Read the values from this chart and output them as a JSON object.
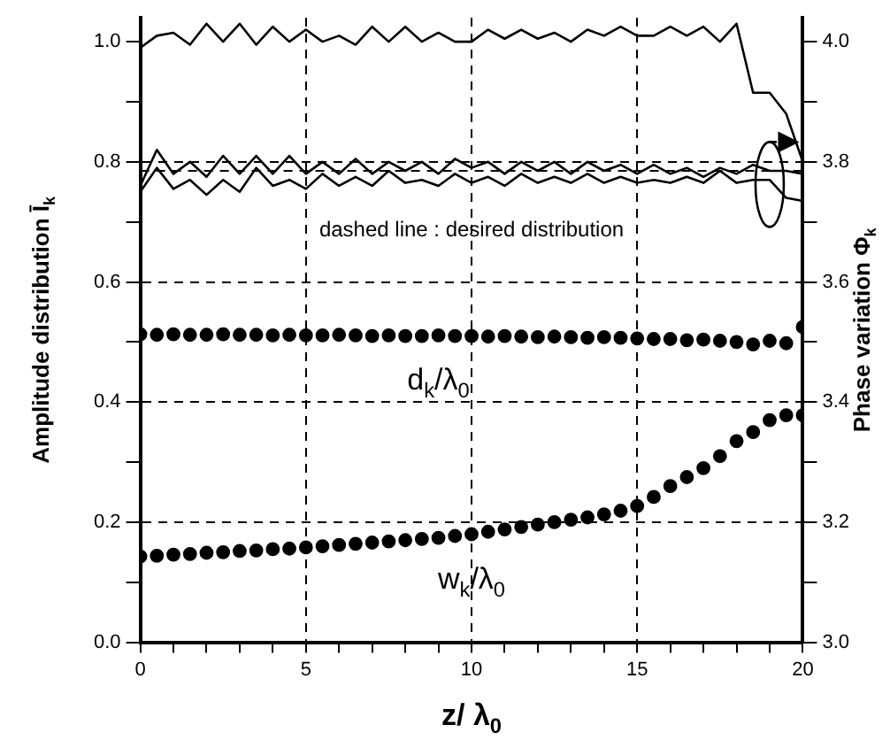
{
  "chart_data": {
    "type": "line",
    "xlabel": "z/ λ$_{0}$",
    "ylabel": "Amplitude distribution Ī$_{k}$",
    "y2label": "Phase variation Φ$_{k}$",
    "annotations": [
      "dashed line : desired distribution"
    ],
    "x": [
      0,
      0.5,
      1,
      1.5,
      2,
      2.5,
      3,
      3.5,
      4,
      4.5,
      5,
      5.5,
      6,
      6.5,
      7,
      7.5,
      8,
      8.5,
      9,
      9.5,
      10,
      10.5,
      11,
      11.5,
      12,
      12.5,
      13,
      13.5,
      14,
      14.5,
      15,
      15.5,
      16,
      16.5,
      17,
      17.5,
      18,
      18.5,
      19,
      19.5,
      20
    ],
    "xlim": [
      0,
      20
    ],
    "xticks": [
      0,
      {
        "value": 1,
        "label": null
      },
      {
        "value": 2,
        "label": null
      },
      {
        "value": 3,
        "label": null
      },
      {
        "value": 4,
        "label": null
      },
      5,
      {
        "value": 6,
        "label": null
      },
      {
        "value": 7,
        "label": null
      },
      {
        "value": 8,
        "label": null
      },
      {
        "value": 9,
        "label": null
      },
      10,
      {
        "value": 11,
        "label": null
      },
      {
        "value": 12,
        "label": null
      },
      {
        "value": 13,
        "label": null
      },
      {
        "value": 14,
        "label": null
      },
      15,
      {
        "value": 16,
        "label": null
      },
      {
        "value": 17,
        "label": null
      },
      {
        "value": 18,
        "label": null
      },
      {
        "value": 19,
        "label": null
      },
      20
    ],
    "ylim": [
      0,
      1.04
    ],
    "yticks": [
      {
        "value": 0,
        "label": "0.0"
      },
      {
        "value": 0.1,
        "label": null
      },
      {
        "value": 0.2,
        "label": "0.2"
      },
      {
        "value": 0.3,
        "label": null
      },
      {
        "value": 0.4,
        "label": "0.4"
      },
      {
        "value": 0.5,
        "label": null
      },
      {
        "value": 0.6,
        "label": "0.6"
      },
      {
        "value": 0.7,
        "label": null
      },
      {
        "value": 0.8,
        "label": "0.8"
      },
      {
        "value": 0.9,
        "label": null
      },
      {
        "value": 1,
        "label": "1.0"
      }
    ],
    "y2lim": [
      3,
      4.04
    ],
    "y2ticks": [
      {
        "value": 3,
        "label": "3.0"
      },
      {
        "value": 3.1,
        "label": null
      },
      3.2,
      {
        "value": 3.3,
        "label": null
      },
      3.4,
      {
        "value": 3.5,
        "label": null
      },
      3.6,
      {
        "value": 3.7,
        "label": null
      },
      3.8,
      {
        "value": 3.9,
        "label": null
      },
      {
        "value": 4,
        "label": "4.0"
      }
    ],
    "grid": true,
    "legend": false,
    "ref_lines": [
      {
        "axis": "y",
        "value": 0.785,
        "line_style": "dashed",
        "color": "#000000"
      }
    ],
    "series": [
      {
        "type": "line",
        "color": "#000000",
        "marker": "none",
        "line_style": "solid",
        "values": [
          0.99,
          1.01,
          1.015,
          0.995,
          1.03,
          1.0,
          1.03,
          0.995,
          1.025,
          1.0,
          1.02,
          1.0,
          1.01,
          0.995,
          1.025,
          1.0,
          1.025,
          1.0,
          1.015,
          1.0,
          1.0,
          1.02,
          1.005,
          1.02,
          1.005,
          1.015,
          1.0,
          1.02,
          1.01,
          1.025,
          1.01,
          1.01,
          1.025,
          1.01,
          1.025,
          1.0,
          1.03,
          0.915,
          0.915,
          0.88,
          0.8
        ]
      },
      {
        "type": "line",
        "axis": "y2",
        "color": "#000000",
        "marker": "none",
        "line_style": "solid",
        "values": [
          3.76,
          3.82,
          3.78,
          3.8,
          3.775,
          3.81,
          3.78,
          3.81,
          3.78,
          3.81,
          3.78,
          3.8,
          3.78,
          3.805,
          3.78,
          3.8,
          3.785,
          3.8,
          3.78,
          3.805,
          3.79,
          3.8,
          3.78,
          3.8,
          3.785,
          3.8,
          3.78,
          3.8,
          3.785,
          3.795,
          3.78,
          3.795,
          3.78,
          3.79,
          3.775,
          3.79,
          3.78,
          3.795,
          3.785,
          3.785,
          3.78
        ]
      },
      {
        "type": "line",
        "axis": "y2",
        "color": "#000000",
        "marker": "none",
        "line_style": "solid",
        "values": [
          3.75,
          3.79,
          3.755,
          3.77,
          3.745,
          3.77,
          3.75,
          3.79,
          3.76,
          3.77,
          3.755,
          3.78,
          3.76,
          3.775,
          3.76,
          3.785,
          3.765,
          3.77,
          3.76,
          3.78,
          3.765,
          3.775,
          3.76,
          3.78,
          3.765,
          3.775,
          3.765,
          3.78,
          3.765,
          3.775,
          3.765,
          3.77,
          3.765,
          3.775,
          3.765,
          3.785,
          3.765,
          3.77,
          3.77,
          3.74,
          3.735
        ]
      },
      {
        "type": "scatter",
        "name": "d$_{k}$/λ$_{0}$",
        "color": "#000000",
        "marker": "circle",
        "values": [
          0.513,
          0.512,
          0.513,
          0.512,
          0.512,
          0.513,
          0.512,
          0.512,
          0.511,
          0.512,
          0.511,
          0.511,
          0.512,
          0.511,
          0.51,
          0.511,
          0.51,
          0.51,
          0.511,
          0.51,
          0.51,
          0.509,
          0.51,
          0.509,
          0.508,
          0.509,
          0.508,
          0.507,
          0.508,
          0.507,
          0.506,
          0.505,
          0.505,
          0.503,
          0.504,
          0.502,
          0.5,
          0.496,
          0.502,
          0.498,
          0.525
        ]
      },
      {
        "type": "scatter",
        "name": "w$_{k}$/λ$_{0}$",
        "color": "#000000",
        "marker": "circle",
        "values": [
          0.143,
          0.144,
          0.146,
          0.147,
          0.149,
          0.15,
          0.152,
          0.153,
          0.155,
          0.156,
          0.158,
          0.16,
          0.162,
          0.164,
          0.166,
          0.168,
          0.17,
          0.172,
          0.174,
          0.177,
          0.18,
          0.184,
          0.188,
          0.192,
          0.196,
          0.2,
          0.204,
          0.208,
          0.213,
          0.219,
          0.227,
          0.242,
          0.26,
          0.275,
          0.29,
          0.31,
          0.335,
          0.35,
          0.37,
          0.378,
          0.378
        ]
      }
    ]
  }
}
